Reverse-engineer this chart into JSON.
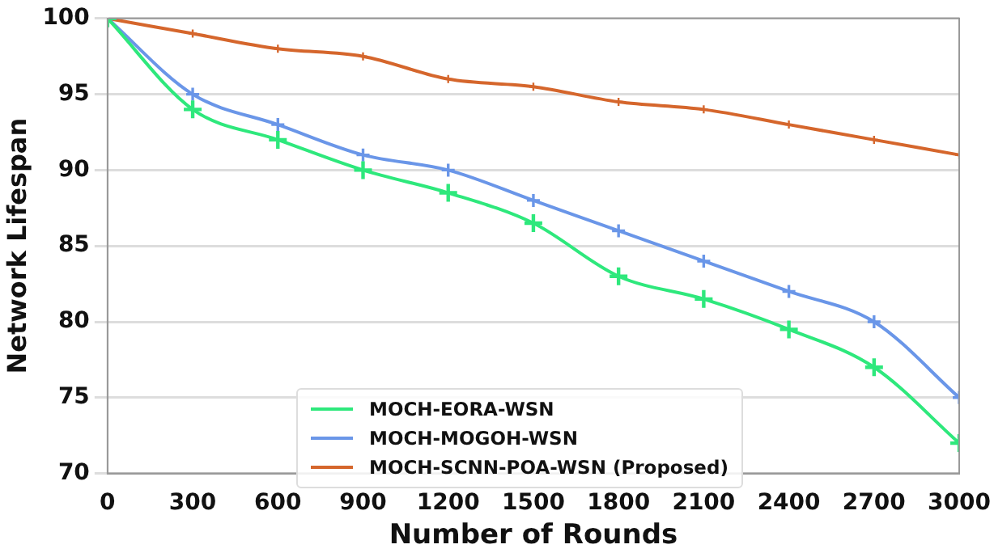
{
  "chart_data": {
    "type": "line",
    "xlabel": "Number of Rounds",
    "ylabel": "Network Lifespan",
    "x": [
      0,
      300,
      600,
      900,
      1200,
      1500,
      1800,
      2100,
      2400,
      2700,
      3000
    ],
    "series": [
      {
        "name": "MOCH-EORA-WSN",
        "color": "#2ee87c",
        "values": [
          100,
          94,
          92,
          90,
          88.5,
          86.5,
          83,
          81.5,
          79.5,
          77,
          72
        ]
      },
      {
        "name": "MOCH-MOGOH-WSN",
        "color": "#6a96e8",
        "values": [
          100,
          95,
          93,
          91,
          90,
          88,
          86,
          84,
          82,
          80,
          75
        ]
      },
      {
        "name": "MOCH-SCNN-POA-WSN (Proposed)",
        "color": "#d5662c",
        "values": [
          100,
          99,
          98,
          97.5,
          96,
          95.5,
          94.5,
          94,
          93,
          92,
          91
        ]
      }
    ],
    "xlim": [
      0,
      3000
    ],
    "xticks": [
      0,
      300,
      600,
      900,
      1200,
      1500,
      1800,
      2100,
      2400,
      2700,
      3000
    ],
    "ylim": [
      70,
      100
    ],
    "yticks": [
      70,
      75,
      80,
      85,
      90,
      95,
      100
    ],
    "grid": "y",
    "legend": "bottom",
    "marker": "cross",
    "line_style": "solid"
  }
}
